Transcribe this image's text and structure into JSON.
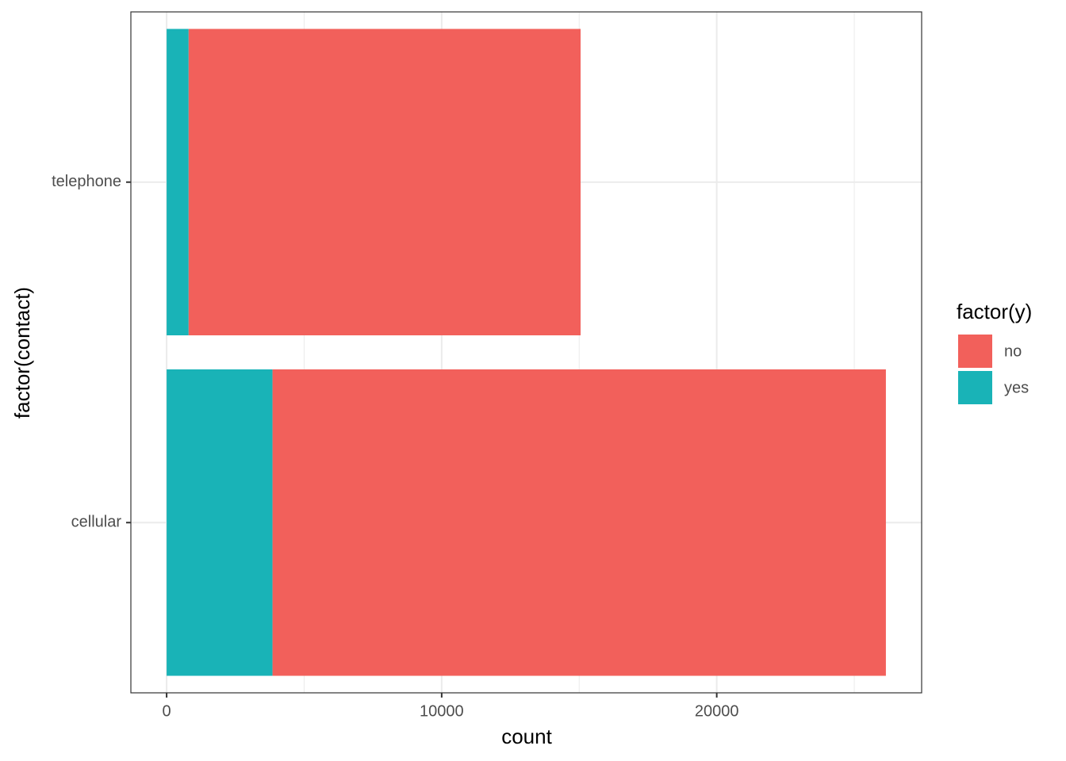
{
  "chart_data": {
    "type": "stacked_barh",
    "categories": [
      "cellular",
      "telephone"
    ],
    "series": [
      {
        "name": "no",
        "color": "#F2605B",
        "values": [
          22300,
          14250
        ]
      },
      {
        "name": "yes",
        "color": "#19B3B7",
        "values": [
          3850,
          800
        ]
      }
    ],
    "x_label": "count",
    "y_label": "factor(contact)",
    "legend_title": "factor(y)",
    "xlim": [
      -1300,
      27450
    ],
    "xticks": [
      0,
      10000,
      20000
    ],
    "xminor": [
      5000,
      15000,
      25000
    ],
    "grid": true,
    "legend_position": "right"
  }
}
